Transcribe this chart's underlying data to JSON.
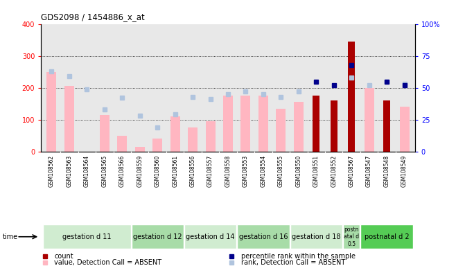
{
  "title": "GDS2098 / 1454886_x_at",
  "samples": [
    "GSM108562",
    "GSM108563",
    "GSM108564",
    "GSM108565",
    "GSM108566",
    "GSM108559",
    "GSM108560",
    "GSM108561",
    "GSM108556",
    "GSM108557",
    "GSM108558",
    "GSM108553",
    "GSM108554",
    "GSM108555",
    "GSM108550",
    "GSM108551",
    "GSM108552",
    "GSM108567",
    "GSM108547",
    "GSM108548",
    "GSM108549"
  ],
  "count": [
    null,
    null,
    null,
    null,
    null,
    null,
    null,
    null,
    null,
    null,
    null,
    null,
    null,
    null,
    null,
    175,
    160,
    345,
    null,
    160,
    null
  ],
  "percentile_rank": [
    null,
    null,
    null,
    null,
    null,
    null,
    null,
    null,
    null,
    null,
    null,
    null,
    null,
    null,
    null,
    55,
    52,
    68,
    null,
    55,
    52
  ],
  "value_absent": [
    250,
    205,
    null,
    115,
    50,
    15,
    40,
    110,
    75,
    95,
    175,
    175,
    175,
    135,
    155,
    null,
    null,
    null,
    200,
    null,
    140
  ],
  "rank_absent": [
    63,
    59,
    49,
    33,
    42,
    28,
    19,
    29,
    43,
    41,
    45,
    47,
    45,
    43,
    47,
    null,
    null,
    58,
    52,
    55,
    53
  ],
  "groups": [
    {
      "label": "gestation d 11",
      "start": 0,
      "end": 5,
      "color": "#d0ecd0"
    },
    {
      "label": "gestation d 12",
      "start": 5,
      "end": 8,
      "color": "#a8dca8"
    },
    {
      "label": "gestation d 14",
      "start": 8,
      "end": 11,
      "color": "#d0ecd0"
    },
    {
      "label": "gestation d 16",
      "start": 11,
      "end": 14,
      "color": "#a8dca8"
    },
    {
      "label": "gestation d 18",
      "start": 14,
      "end": 17,
      "color": "#d0ecd0"
    },
    {
      "label": "postn\natal d\n0.5",
      "start": 17,
      "end": 18,
      "color": "#a8dca8"
    },
    {
      "label": "postnatal d 2",
      "start": 18,
      "end": 21,
      "color": "#55cc55"
    }
  ],
  "ylim_left": [
    0,
    400
  ],
  "ylim_right": [
    0,
    100
  ],
  "left_ticks": [
    0,
    100,
    200,
    300,
    400
  ],
  "right_ticks": [
    0,
    25,
    50,
    75,
    100
  ],
  "count_color": "#aa0000",
  "percentile_color": "#00008b",
  "value_absent_color": "#ffb6c1",
  "rank_absent_color": "#b0c4de",
  "plot_bg_color": "#e8e8e8",
  "xtick_bg_color": "#d0d0d0"
}
